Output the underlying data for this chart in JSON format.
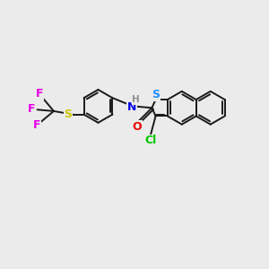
{
  "background_color": "#ebebeb",
  "bond_color": "#1a1a1a",
  "atom_colors": {
    "F": "#e800e8",
    "S_yellow": "#c8c800",
    "N": "#0000e8",
    "H": "#909090",
    "O": "#e80000",
    "Cl": "#00c800",
    "S_blue": "#1e90ff"
  },
  "r_hex": 0.62,
  "lw": 1.4,
  "fontsize": 8.5
}
